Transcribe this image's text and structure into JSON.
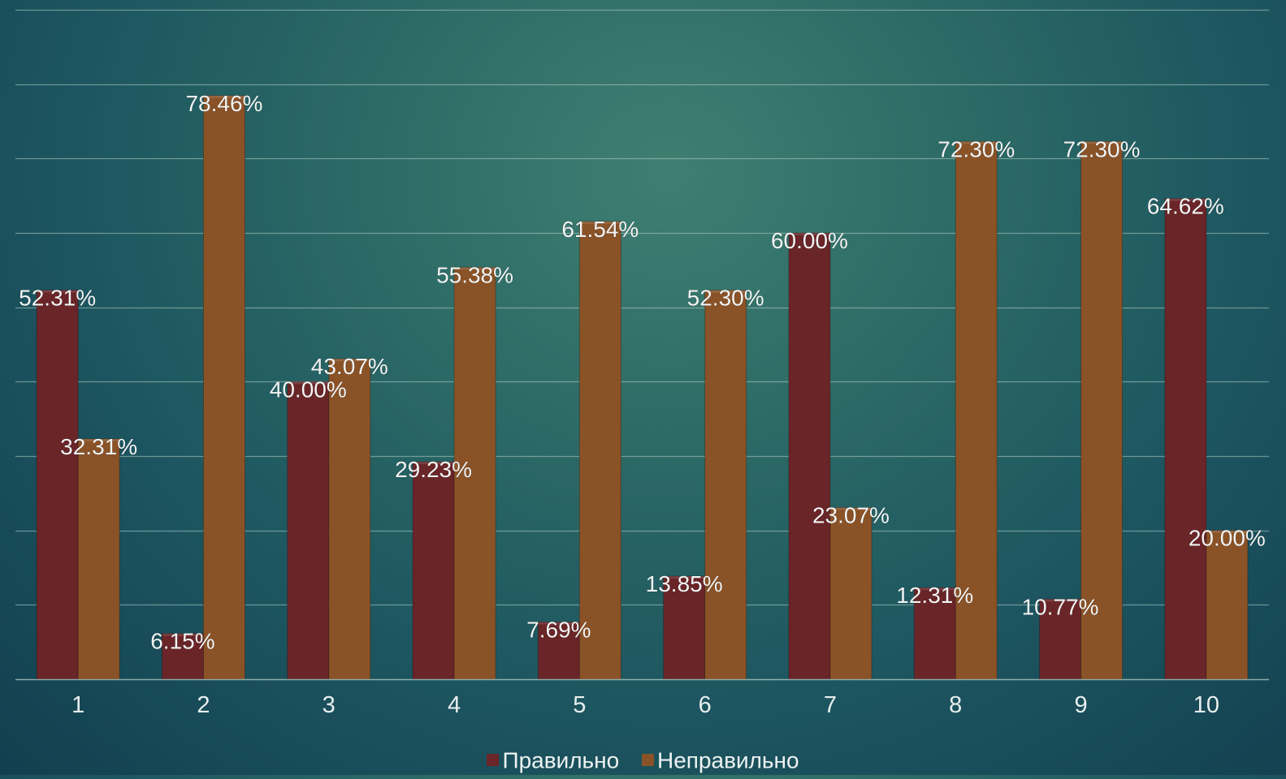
{
  "chart_data": {
    "type": "bar",
    "categories": [
      "1",
      "2",
      "3",
      "4",
      "5",
      "6",
      "7",
      "8",
      "9",
      "10"
    ],
    "series": [
      {
        "name": "Правильно",
        "color": "#6a2528",
        "values": [
          52.31,
          6.15,
          40.0,
          29.23,
          7.69,
          13.85,
          60.0,
          12.31,
          10.77,
          64.62
        ],
        "labels": [
          "52.31%",
          "6.15%",
          "40.00%",
          "29.23%",
          "7.69%",
          "13.85%",
          "60.00%",
          "12.31%",
          "10.77%",
          "64.62%"
        ]
      },
      {
        "name": "Неправильно",
        "color": "#8a5227",
        "values": [
          32.31,
          78.46,
          43.07,
          55.38,
          61.54,
          52.3,
          23.07,
          72.3,
          72.3,
          20.0
        ],
        "labels": [
          "32.31%",
          "78.46%",
          "43.07%",
          "55.38%",
          "61.54%",
          "52.30%",
          "23.07%",
          "72.30%",
          "72.30%",
          "20.00%"
        ]
      }
    ],
    "ylim": [
      0,
      90
    ],
    "grid": true,
    "legend_position": "bottom",
    "title": "",
    "xlabel": "",
    "ylabel": ""
  }
}
